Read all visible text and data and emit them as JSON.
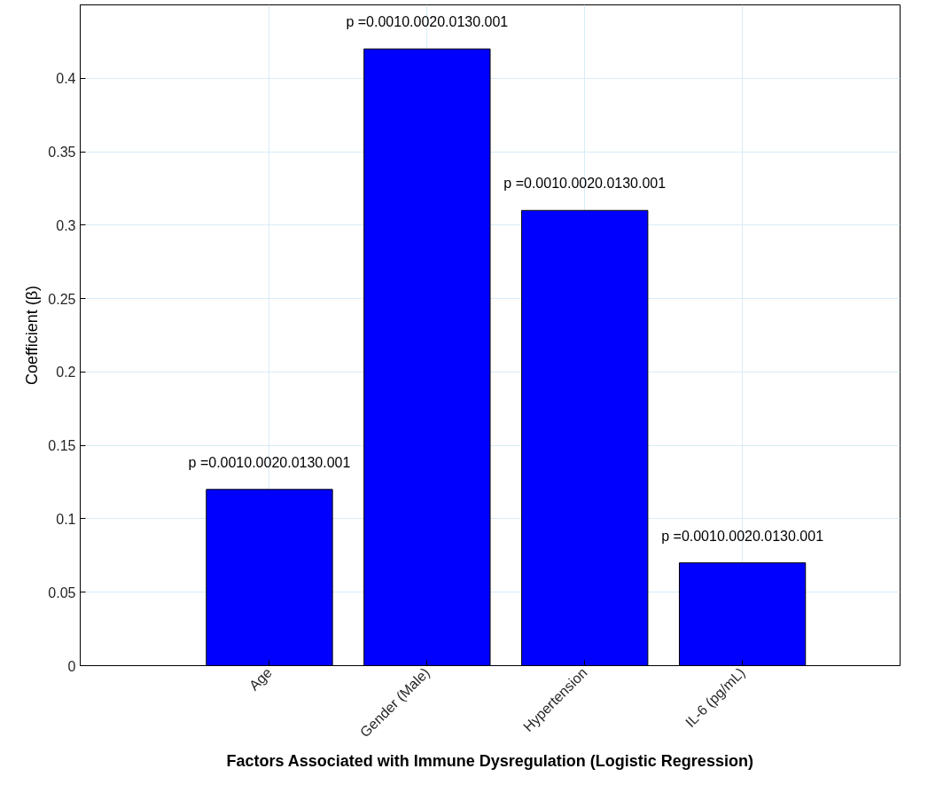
{
  "chart_data": {
    "type": "bar",
    "xlabel": "Factors Associated with Immune Dysregulation (Logistic Regression)",
    "ylabel": "Coefficient (β)",
    "categories": [
      "Age",
      "Gender (Male)",
      "Hypertension",
      "IL-6 (pg/mL)"
    ],
    "values": [
      0.12,
      0.42,
      0.31,
      0.07
    ],
    "color": "#0000ff",
    "ylim": [
      0,
      0.45
    ],
    "yticks": [
      0,
      0.05,
      0.1,
      0.15,
      0.2,
      0.25,
      0.3,
      0.35,
      0.4
    ],
    "grid": true,
    "annotations": [
      {
        "text": "p =0.0010.0020.0130.001",
        "x": "Age",
        "y": 0.12
      },
      {
        "text": "p =0.0010.0020.0130.001",
        "x": "Gender (Male)",
        "y": 0.42
      },
      {
        "text": "p =0.0010.0020.0130.001",
        "x": "Hypertension",
        "y": 0.31
      },
      {
        "text": "p =0.0010.0020.0130.001",
        "x": "IL-6 (pg/mL)",
        "y": 0.07
      }
    ]
  }
}
